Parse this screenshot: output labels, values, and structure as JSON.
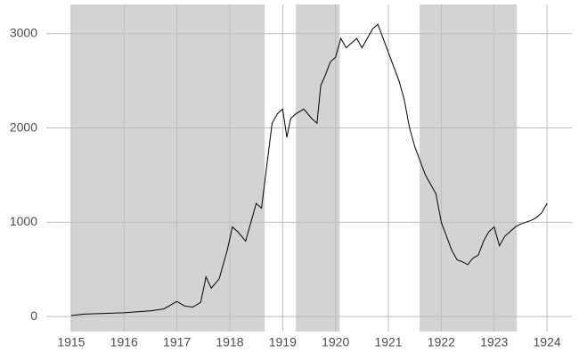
{
  "chart_data": {
    "type": "line",
    "x": [
      1915.0,
      1915.25,
      1915.5,
      1915.75,
      1916.0,
      1916.25,
      1916.5,
      1916.75,
      1917.0,
      1917.15,
      1917.3,
      1917.45,
      1917.55,
      1917.65,
      1917.8,
      1917.95,
      1918.05,
      1918.15,
      1918.3,
      1918.4,
      1918.5,
      1918.6,
      1918.7,
      1918.8,
      1918.9,
      1919.0,
      1919.08,
      1919.15,
      1919.25,
      1919.4,
      1919.55,
      1919.65,
      1919.72,
      1919.8,
      1919.9,
      1920.0,
      1920.1,
      1920.2,
      1920.3,
      1920.4,
      1920.5,
      1920.6,
      1920.7,
      1920.8,
      1920.9,
      1921.0,
      1921.1,
      1921.2,
      1921.3,
      1921.4,
      1921.5,
      1921.6,
      1921.7,
      1921.8,
      1921.9,
      1922.0,
      1922.1,
      1922.2,
      1922.3,
      1922.4,
      1922.5,
      1922.6,
      1922.7,
      1922.8,
      1922.9,
      1923.0,
      1923.1,
      1923.2,
      1923.3,
      1923.4,
      1923.5,
      1923.6,
      1923.7,
      1923.8,
      1923.9,
      1924.0
    ],
    "values": [
      10,
      25,
      30,
      35,
      40,
      50,
      60,
      80,
      160,
      110,
      100,
      150,
      420,
      300,
      400,
      700,
      950,
      900,
      800,
      1000,
      1200,
      1150,
      1600,
      2050,
      2150,
      2200,
      1900,
      2100,
      2150,
      2200,
      2100,
      2050,
      2450,
      2550,
      2700,
      2750,
      2950,
      2850,
      2900,
      2950,
      2850,
      2950,
      3050,
      3100,
      2950,
      2800,
      2650,
      2500,
      2300,
      2000,
      1800,
      1650,
      1500,
      1400,
      1300,
      1000,
      850,
      700,
      600,
      580,
      550,
      620,
      650,
      800,
      900,
      950,
      750,
      850,
      900,
      950,
      980,
      1000,
      1020,
      1050,
      1100,
      1200
    ],
    "color": "#000000",
    "shaded_regions": [
      [
        1915.0,
        1918.66
      ],
      [
        1919.25,
        1920.08
      ],
      [
        1921.59,
        1923.43
      ]
    ],
    "shade_color": "#d3d3d3",
    "xlim": [
      1914.53,
      1924.47
    ],
    "xticks": [
      1915,
      1916,
      1917,
      1918,
      1919,
      1920,
      1921,
      1922,
      1923,
      1924
    ],
    "ylim": [
      -160,
      3310
    ],
    "yticks": [
      0,
      1000,
      2000,
      3000
    ],
    "grid": true
  }
}
